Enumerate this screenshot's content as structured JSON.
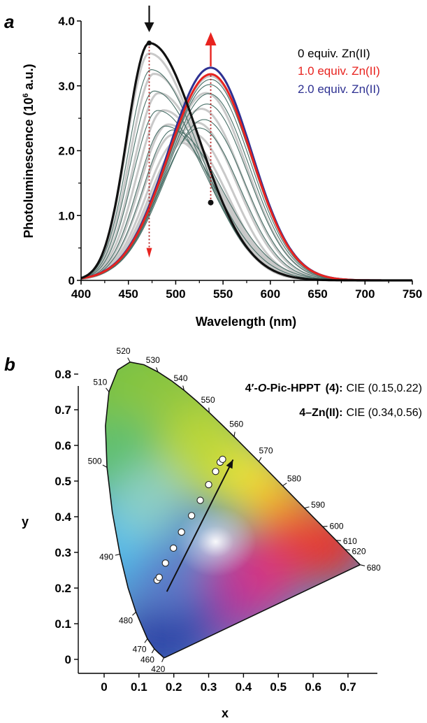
{
  "chart_data": [
    {
      "panel": "a",
      "type": "line",
      "xlabel": "Wavelength (nm)",
      "ylabel": "Photoluminescence (10",
      "ylabel_sup": "6",
      "ylabel_tail": " a.u.)",
      "xlim": [
        400,
        750
      ],
      "ylim": [
        0,
        4.0
      ],
      "x_ticks": [
        400,
        450,
        500,
        550,
        600,
        650,
        700,
        750
      ],
      "y_ticks": [
        {
          "value": 0,
          "label": "0"
        },
        {
          "value": 1.0,
          "label": "1.0"
        },
        {
          "value": 2.0,
          "label": "2.0"
        },
        {
          "value": 3.0,
          "label": "3.0"
        },
        {
          "value": 4.0,
          "label": "4.0"
        }
      ],
      "series": [
        {
          "name": "0 equiv. Zn(II)",
          "color": "#111111",
          "peak_x": 472,
          "peak_y": 3.66
        },
        {
          "name": "1.0 equiv. Zn(II)",
          "color": "#e8231f",
          "peak_x": 537,
          "peak_y": 3.18
        },
        {
          "name": "2.0 equiv. Zn(II)",
          "color": "#2e3192",
          "peak_x": 537,
          "peak_y": 3.28
        }
      ],
      "intermediate_peaks": [
        {
          "x": 474,
          "y": 3.25
        },
        {
          "x": 477,
          "y": 2.92
        },
        {
          "x": 481,
          "y": 2.62
        },
        {
          "x": 489,
          "y": 2.38
        },
        {
          "x": 497,
          "y": 2.32
        },
        {
          "x": 525,
          "y": 2.35
        },
        {
          "x": 530,
          "y": 2.48
        },
        {
          "x": 533,
          "y": 2.72
        },
        {
          "x": 535,
          "y": 2.88
        },
        {
          "x": 536,
          "y": 3.02
        },
        {
          "x": 537,
          "y": 3.1
        }
      ],
      "intermediate_color": "#4a7068",
      "markers": [
        {
          "x": 472,
          "y": 3.66
        },
        {
          "x": 537,
          "y": 1.2
        },
        {
          "x": 472,
          "y": 3.66
        }
      ],
      "annotations": [
        {
          "kind": "arrow-down",
          "x": 472,
          "color": "#111111"
        },
        {
          "kind": "arrow-up",
          "x": 537,
          "color": "#e8231f"
        }
      ]
    },
    {
      "panel": "b",
      "type": "scatter",
      "xlabel": "x",
      "ylabel": "y",
      "xlim": [
        -0.05,
        0.82
      ],
      "ylim": [
        -0.04,
        0.88
      ],
      "x_ticks": [
        {
          "value": 0,
          "label": "0"
        },
        {
          "value": 0.1,
          "label": "0.1"
        },
        {
          "value": 0.2,
          "label": "0.2"
        },
        {
          "value": 0.3,
          "label": "0.3"
        },
        {
          "value": 0.4,
          "label": "0.4"
        },
        {
          "value": 0.5,
          "label": "0.5"
        },
        {
          "value": 0.6,
          "label": "0.6"
        },
        {
          "value": 0.7,
          "label": "0.7"
        }
      ],
      "y_ticks": [
        {
          "value": 0,
          "label": "0"
        },
        {
          "value": 0.1,
          "label": "0.1"
        },
        {
          "value": 0.2,
          "label": "0.2"
        },
        {
          "value": 0.3,
          "label": "0.3"
        },
        {
          "value": 0.4,
          "label": "0.4"
        },
        {
          "value": 0.5,
          "label": "0.5"
        },
        {
          "value": 0.6,
          "label": "0.6"
        },
        {
          "value": 0.7,
          "label": "0.7"
        },
        {
          "value": 0.8,
          "label": "0.8"
        }
      ],
      "points": [
        {
          "x": 0.152,
          "y": 0.222
        },
        {
          "x": 0.158,
          "y": 0.23
        },
        {
          "x": 0.176,
          "y": 0.27
        },
        {
          "x": 0.199,
          "y": 0.312
        },
        {
          "x": 0.222,
          "y": 0.357
        },
        {
          "x": 0.251,
          "y": 0.403
        },
        {
          "x": 0.276,
          "y": 0.446
        },
        {
          "x": 0.3,
          "y": 0.49
        },
        {
          "x": 0.32,
          "y": 0.527
        },
        {
          "x": 0.333,
          "y": 0.553
        },
        {
          "x": 0.34,
          "y": 0.561
        }
      ],
      "trend_arrow": {
        "from": {
          "x": 0.18,
          "y": 0.19
        },
        "to": {
          "x": 0.37,
          "y": 0.56
        }
      },
      "wavelength_labels": [
        {
          "text": "520",
          "x": 0.0743,
          "y": 0.8338
        },
        {
          "text": "530",
          "x": 0.1547,
          "y": 0.8059
        },
        {
          "text": "540",
          "x": 0.2296,
          "y": 0.7543
        },
        {
          "text": "550",
          "x": 0.3016,
          "y": 0.6923
        },
        {
          "text": "560",
          "x": 0.3731,
          "y": 0.6245
        },
        {
          "text": "570",
          "x": 0.4441,
          "y": 0.5547
        },
        {
          "text": "580",
          "x": 0.5125,
          "y": 0.4866
        },
        {
          "text": "590",
          "x": 0.5752,
          "y": 0.4242
        },
        {
          "text": "600",
          "x": 0.627,
          "y": 0.3725
        },
        {
          "text": "610",
          "x": 0.6658,
          "y": 0.334
        },
        {
          "text": "620",
          "x": 0.6915,
          "y": 0.3083
        },
        {
          "text": "680",
          "x": 0.7347,
          "y": 0.2653
        },
        {
          "text": "510",
          "x": 0.0139,
          "y": 0.7502
        },
        {
          "text": "500",
          "x": 0.0082,
          "y": 0.5384
        },
        {
          "text": "490",
          "x": 0.0454,
          "y": 0.295
        },
        {
          "text": "480",
          "x": 0.0913,
          "y": 0.1327
        },
        {
          "text": "470",
          "x": 0.1241,
          "y": 0.0578
        },
        {
          "text": "460",
          "x": 0.144,
          "y": 0.0297
        },
        {
          "text": "420",
          "x": 0.1714,
          "y": 0.0051
        }
      ],
      "labels": [
        {
          "compound": "4′-",
          "italic": "O",
          "rest": "-Pic-HPPT",
          "id": "(4)",
          "sep": ":",
          "cie": "CIE (0.15,0.22)"
        },
        {
          "compound": "4–Zn(II)",
          "sep": ":",
          "cie": "CIE (0.34,0.56)"
        }
      ]
    }
  ],
  "panel_a_label": "a",
  "panel_b_label": "b"
}
